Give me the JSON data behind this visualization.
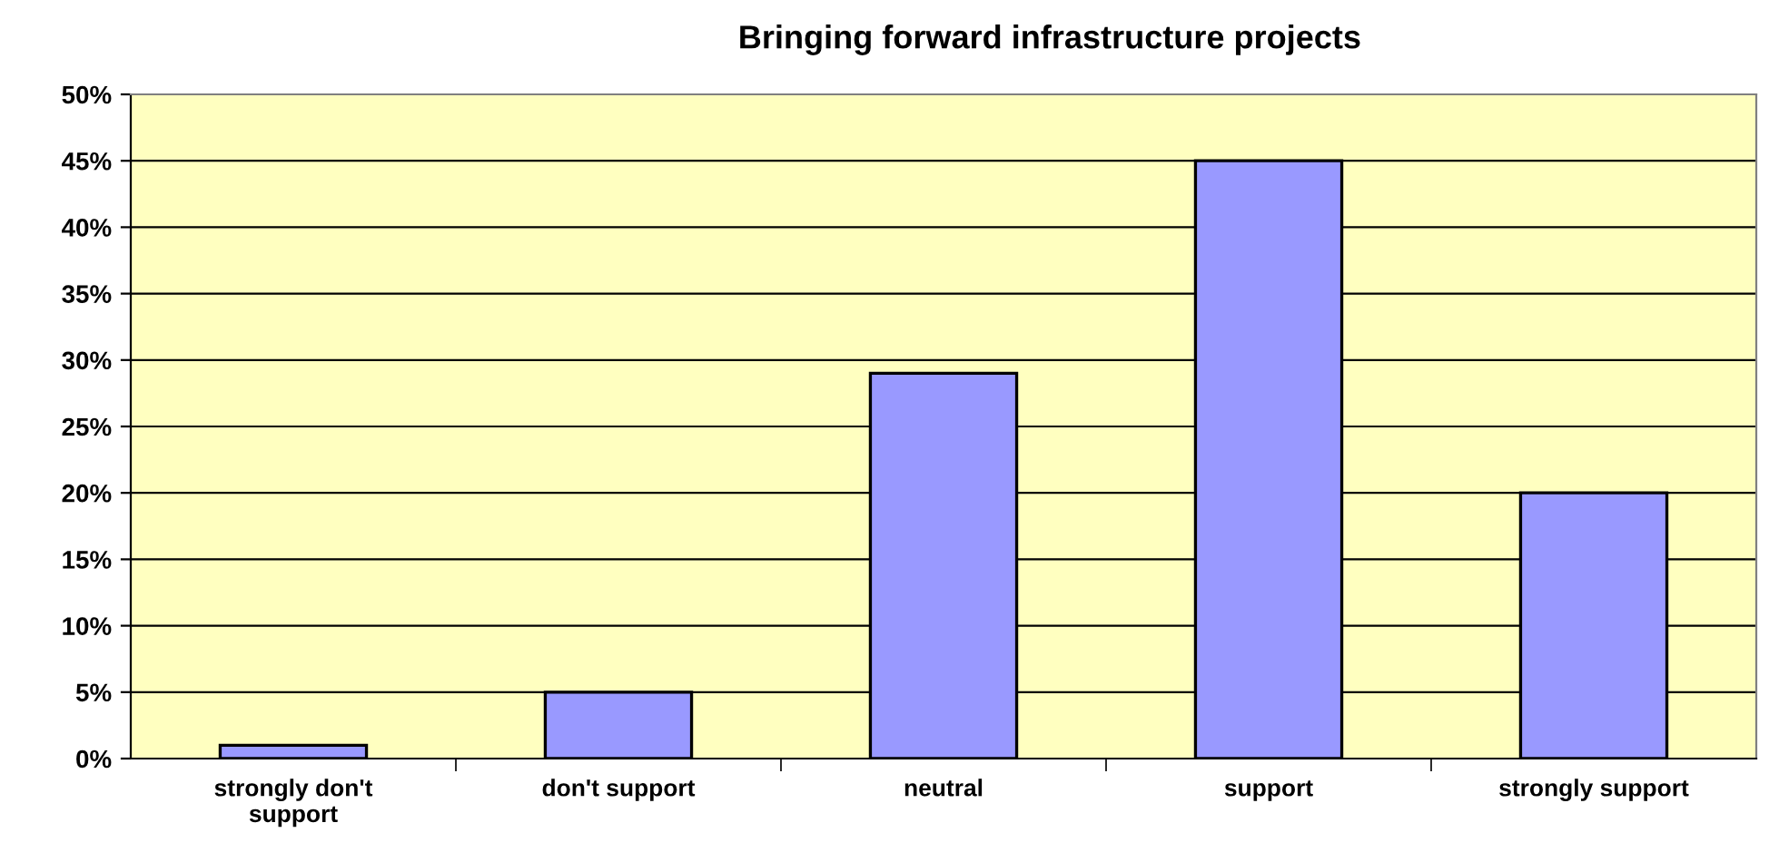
{
  "chart_data": {
    "type": "bar",
    "title": "Bringing forward infrastructure projects",
    "categories": [
      "strongly don't\nsupport",
      "don't support",
      "neutral",
      "support",
      "strongly support"
    ],
    "values": [
      1,
      5,
      29,
      45,
      20
    ],
    "color": "#9999ff",
    "ylim": [
      0,
      50
    ],
    "yticks": [
      {
        "value": 0,
        "label": "0%"
      },
      {
        "value": 5,
        "label": "5%"
      },
      {
        "value": 10,
        "label": "10%"
      },
      {
        "value": 15,
        "label": "15%"
      },
      {
        "value": 20,
        "label": "20%"
      },
      {
        "value": 25,
        "label": "25%"
      },
      {
        "value": 30,
        "label": "30%"
      },
      {
        "value": 35,
        "label": "35%"
      },
      {
        "value": 40,
        "label": "40%"
      },
      {
        "value": 45,
        "label": "45%"
      },
      {
        "value": 50,
        "label": "50%"
      }
    ],
    "grid": "y"
  }
}
